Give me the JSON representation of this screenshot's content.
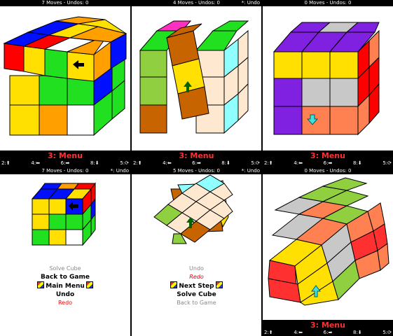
{
  "panels": [
    {
      "status": "7 Moves - Undos: 0",
      "status_right": "",
      "menu": "3: Menu",
      "keys": [
        "2:⬆",
        "4:⬅",
        "6:➡",
        "8:⬇",
        "5:⟳"
      ]
    },
    {
      "status": "4 Moves - Undos: 0",
      "status_right": "*: Undo",
      "menu": "3: Menu",
      "keys": [
        "2:⬆",
        "4:⬅",
        "6:➡",
        "8:⬇",
        "5:⟳"
      ]
    },
    {
      "status": "0 Moves - Undos: 0",
      "status_right": "",
      "menu": "3: Menu",
      "keys": [
        "2:⬆",
        "4:⬅",
        "6:➡",
        "8:⬇",
        "5:⟳"
      ]
    },
    {
      "status": "7 Moves - Undos: 0",
      "status_right": "*: Undo",
      "menu_items": [
        "Solve Cube",
        "Back to Game",
        "Main Menu",
        "Undo",
        "Redo"
      ]
    },
    {
      "status": "5 Moves - Undos: 0",
      "status_right": "*: Undo",
      "menu_items": [
        "Undo",
        "Redo",
        "Next Step",
        "Solve Cube",
        "Back to Game"
      ]
    },
    {
      "status": "0 Moves - Undos: 0",
      "status_right": "",
      "menu": "3: Menu",
      "keys": [
        "2:⬆",
        "4:⬅",
        "6:➡",
        "8:⬇",
        "5:⟳"
      ]
    }
  ],
  "colors": {
    "red": "#ff0000",
    "yellow": "#ffe000",
    "green": "#20e020",
    "blue": "#0010ff",
    "orange": "#ffa000",
    "white": "#ffffff",
    "brown": "#c86400",
    "purple": "#8020e0",
    "gray": "#c8c8c8",
    "pink": "#ff30c0",
    "cyan": "#90ffff",
    "peach": "#ffe8d0",
    "lime": "#90d040",
    "salmon": "#ff8050"
  },
  "icons": [
    "arrow-left-icon",
    "arrow-up-icon",
    "arrow-down-icon",
    "rotate-icon",
    "cube-icon"
  ]
}
